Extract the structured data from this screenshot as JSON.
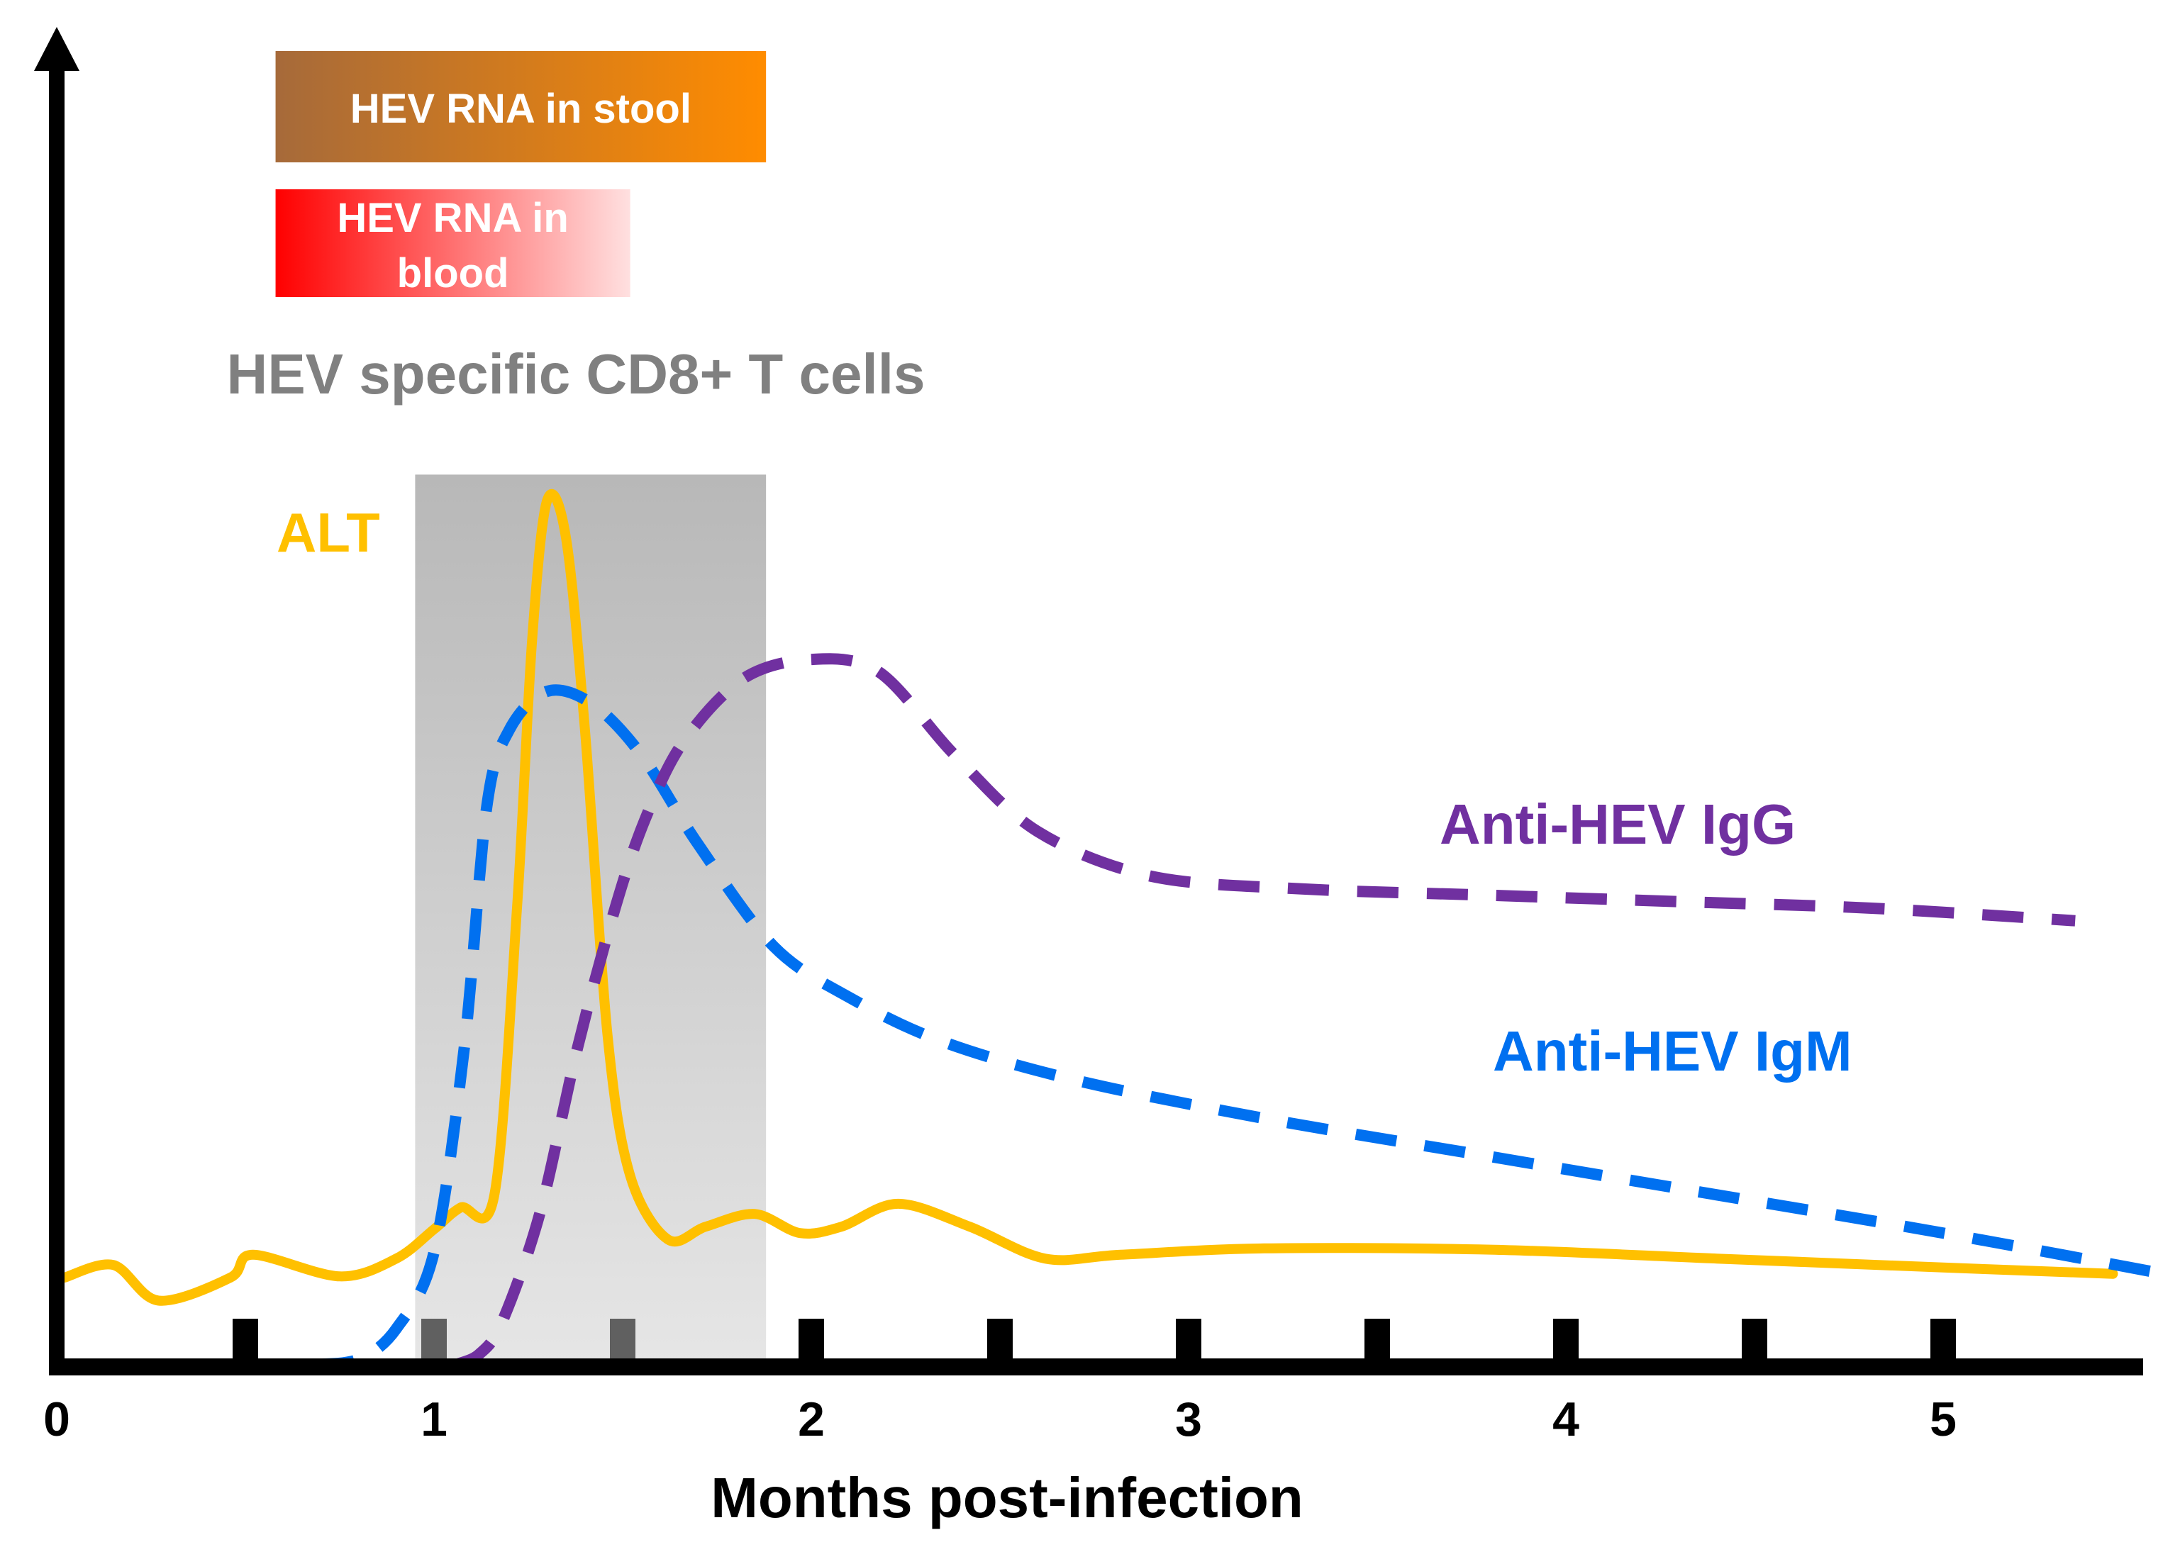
{
  "chart_data": {
    "type": "line",
    "title": "",
    "xlabel": "Months post-infection",
    "ylabel": "",
    "xlim": [
      0,
      5.5
    ],
    "ylim": [
      0,
      100
    ],
    "xticks": [
      0,
      1,
      2,
      3,
      4,
      5
    ],
    "xtick_labels": [
      "0",
      "1",
      "2",
      "3",
      "4",
      "5"
    ],
    "minor_ticks": [
      0.5,
      1,
      1.5,
      2,
      2.5,
      3,
      3.5,
      4,
      4.5,
      5
    ],
    "grid": false,
    "colors": {
      "alt": "#FFC000",
      "igm": "#0070F0",
      "igg": "#7030A0",
      "tcell_text": "#808080",
      "stool_start": "#A66A3A",
      "stool_end": "#FF8C00",
      "blood_start": "#FF0000",
      "blood_end": "#FFE0E0",
      "window": "#B8B8B8"
    },
    "bars": [
      {
        "id": "stool",
        "label": "HEV RNA in stool",
        "start": 0.58,
        "end": 1.88
      },
      {
        "id": "blood",
        "label": "HEV RNA in blood",
        "label_lines": [
          "HEV RNA in",
          "blood"
        ],
        "start": 0.58,
        "end": 1.52
      }
    ],
    "shaded_window": {
      "label": "HEV specific CD8+ T cells",
      "start": 0.95,
      "end": 1.88,
      "top": 70
    },
    "series": [
      {
        "name": "ALT",
        "style": "solid",
        "x": [
          0.02,
          0.15,
          0.27,
          0.46,
          0.52,
          0.75,
          0.9,
          1.0,
          1.07,
          1.16,
          1.22,
          1.26,
          1.3,
          1.35,
          1.4,
          1.46,
          1.52,
          1.62,
          1.72,
          1.85,
          1.97,
          2.08,
          2.23,
          2.42,
          2.62,
          2.82,
          3.2,
          3.8,
          4.4,
          5.0,
          5.45
        ],
        "y": [
          7.0,
          8.0,
          5.2,
          7.0,
          8.8,
          7.1,
          8.5,
          10.8,
          12.5,
          13.5,
          36,
          57,
          68,
          65,
          50,
          26,
          15,
          10,
          11,
          12,
          10.5,
          11,
          12.8,
          11,
          8.5,
          8.8,
          9.3,
          9.2,
          8.5,
          7.8,
          7.3
        ]
      },
      {
        "name": "Anti-HEV IgM",
        "style": "dashed",
        "x": [
          0.68,
          0.8,
          0.9,
          1.0,
          1.08,
          1.14,
          1.2,
          1.3,
          1.42,
          1.55,
          1.7,
          1.9,
          2.1,
          2.35,
          2.7,
          3.2,
          3.8,
          4.4,
          5.0,
          5.55
        ],
        "y": [
          0.2,
          0.6,
          3.0,
          9.0,
          25,
          44,
          50,
          53,
          52,
          48,
          41,
          33,
          29,
          25.5,
          22.5,
          19.5,
          16.5,
          13.5,
          10.5,
          7.5
        ]
      },
      {
        "name": "Anti-HEV IgG",
        "style": "dashed",
        "x": [
          1.06,
          1.12,
          1.18,
          1.28,
          1.38,
          1.48,
          1.56,
          1.66,
          1.82,
          2.0,
          2.18,
          2.38,
          2.6,
          2.9,
          3.3,
          3.8,
          4.3,
          4.8,
          5.35
        ],
        "y": [
          0.2,
          1.0,
          3.5,
          12,
          25,
          36,
          43,
          49,
          54,
          55.5,
          54.5,
          48,
          42,
          38.5,
          37.5,
          37,
          36.5,
          36,
          35
        ]
      }
    ],
    "annotations": [
      {
        "text": "ALT",
        "series": "ALT"
      },
      {
        "text": "Anti-HEV IgG",
        "series": "Anti-HEV IgG"
      },
      {
        "text": "Anti-HEV IgM",
        "series": "Anti-HEV IgM"
      }
    ]
  }
}
